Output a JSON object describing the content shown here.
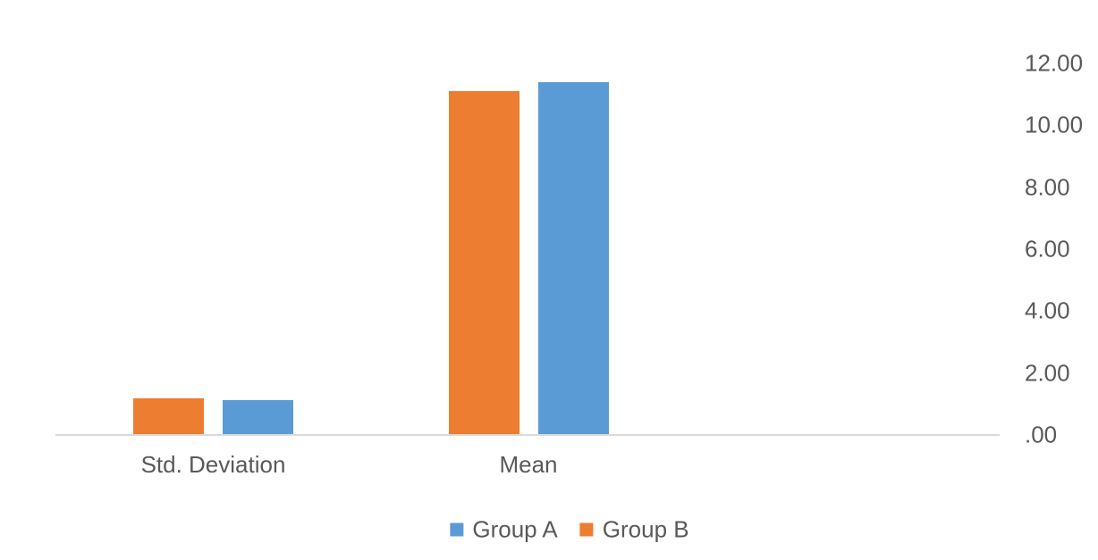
{
  "chart_data": {
    "type": "bar",
    "title": "",
    "categories": [
      "Std. Deviation",
      "Mean"
    ],
    "series": [
      {
        "name": "Group A",
        "color": "#5B9BD5",
        "values": [
          1.13,
          11.4
        ]
      },
      {
        "name": "Group B",
        "color": "#ED7D31",
        "values": [
          1.19,
          11.1
        ]
      }
    ],
    "value_axis": {
      "side": "right",
      "min": 0,
      "max": 12,
      "step": 2,
      "tick_labels": [
        ".00",
        "2.00",
        "4.00",
        "6.00",
        "8.00",
        "10.00",
        "12.00"
      ]
    },
    "category_axis": {
      "labels": [
        "Std. Deviation",
        "Mean"
      ]
    },
    "legend": {
      "position": "bottom",
      "entries": [
        {
          "label": "Group A",
          "color": "#5B9BD5"
        },
        {
          "label": "Group B",
          "color": "#ED7D31"
        }
      ]
    },
    "layout_hints": {
      "series_visual_order_in_group": [
        "Group B",
        "Group A"
      ],
      "gridlines": false,
      "plot_background": "#FFFFFF",
      "axis_line_color": "#D9D9D9",
      "text_color": "#595959"
    }
  }
}
